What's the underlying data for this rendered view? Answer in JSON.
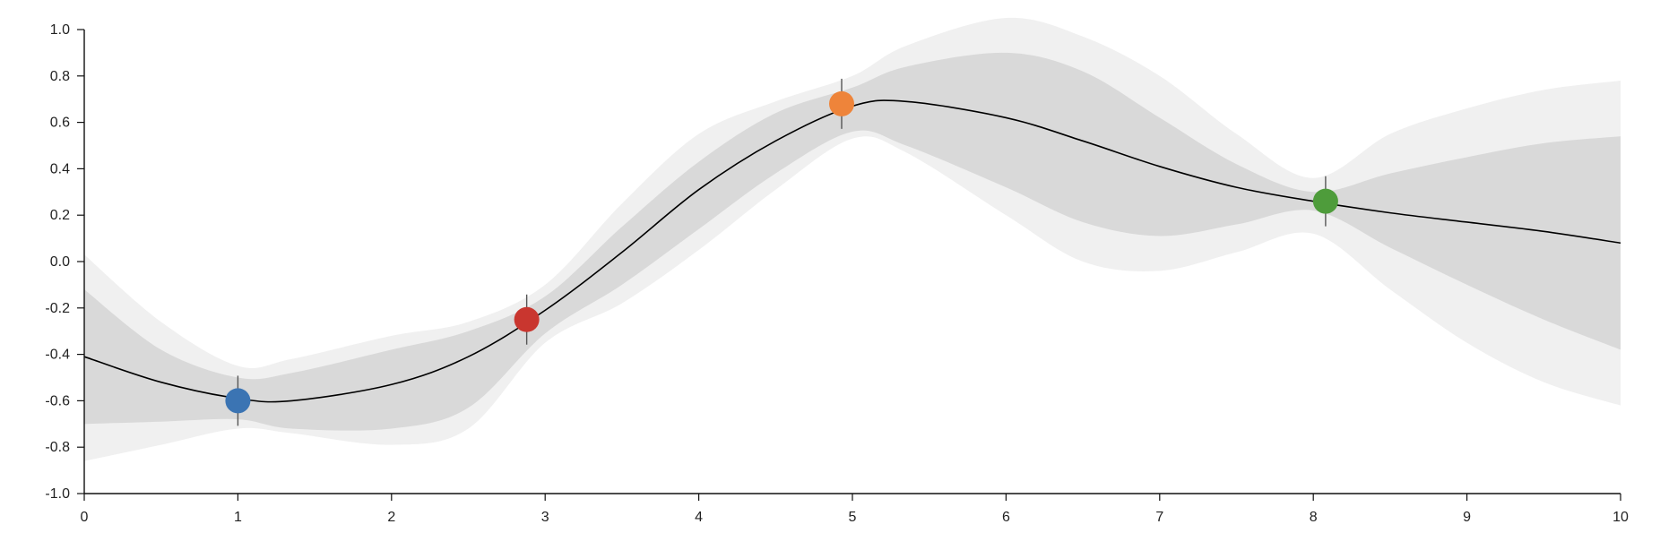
{
  "chart_data": {
    "type": "line",
    "title": "",
    "xlabel": "",
    "ylabel": "",
    "xlim": [
      0,
      10
    ],
    "ylim": [
      -1.0,
      1.0
    ],
    "x_ticks": [
      "0",
      "1",
      "2",
      "3",
      "4",
      "5",
      "6",
      "7",
      "8",
      "9",
      "10"
    ],
    "y_ticks": [
      "1.0",
      "0.8",
      "0.6",
      "0.4",
      "0.2",
      "0.0",
      "-0.2",
      "-0.4",
      "-0.6",
      "-0.8",
      "-1.0"
    ],
    "grid": false,
    "x": [
      0,
      0.5,
      1,
      1.35,
      2,
      2.5,
      3,
      3.5,
      4,
      4.5,
      5,
      5.35,
      6,
      6.5,
      7,
      7.5,
      8,
      8.5,
      9,
      9.5,
      10
    ],
    "series": [
      {
        "kind": "mean",
        "color": "#000000",
        "values": [
          -0.41,
          -0.52,
          -0.59,
          -0.6,
          -0.53,
          -0.41,
          -0.21,
          0.04,
          0.31,
          0.52,
          0.67,
          0.69,
          0.62,
          0.52,
          0.41,
          0.32,
          0.26,
          0.21,
          0.17,
          0.13,
          0.08
        ]
      },
      {
        "kind": "band-1sd",
        "color": "#d9d9d9",
        "upper": [
          -0.12,
          -0.38,
          -0.5,
          -0.48,
          -0.38,
          -0.3,
          -0.15,
          0.15,
          0.43,
          0.64,
          0.75,
          0.84,
          0.9,
          0.82,
          0.62,
          0.42,
          0.3,
          0.38,
          0.45,
          0.51,
          0.54
        ],
        "lower": [
          -0.7,
          -0.69,
          -0.68,
          -0.72,
          -0.72,
          -0.63,
          -0.31,
          -0.1,
          0.14,
          0.38,
          0.56,
          0.5,
          0.32,
          0.17,
          0.11,
          0.16,
          0.22,
          0.06,
          -0.1,
          -0.25,
          -0.38
        ]
      },
      {
        "kind": "band-2sd",
        "color": "#f0f0f0",
        "upper": [
          0.03,
          -0.26,
          -0.45,
          -0.42,
          -0.32,
          -0.26,
          -0.1,
          0.25,
          0.55,
          0.69,
          0.8,
          0.93,
          1.05,
          0.97,
          0.8,
          0.55,
          0.36,
          0.55,
          0.66,
          0.74,
          0.78
        ],
        "lower": [
          -0.86,
          -0.79,
          -0.72,
          -0.74,
          -0.79,
          -0.72,
          -0.35,
          -0.18,
          0.05,
          0.31,
          0.53,
          0.47,
          0.2,
          0.0,
          -0.04,
          0.04,
          0.12,
          -0.12,
          -0.35,
          -0.52,
          -0.62
        ]
      }
    ],
    "points": [
      {
        "x": 1.0,
        "y": -0.6,
        "error": 0.09,
        "color": "#3b74b3"
      },
      {
        "x": 2.88,
        "y": -0.25,
        "error": 0.09,
        "color": "#c9362f"
      },
      {
        "x": 4.93,
        "y": 0.68,
        "error": 0.09,
        "color": "#ee843a"
      },
      {
        "x": 8.08,
        "y": 0.26,
        "error": 0.09,
        "color": "#4e9c3b"
      }
    ]
  }
}
